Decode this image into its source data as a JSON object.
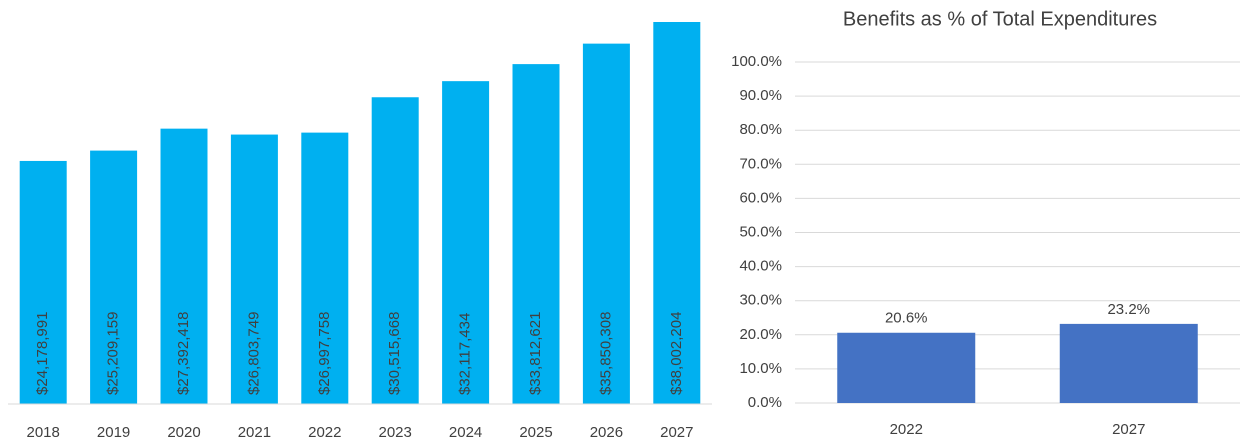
{
  "chart_data": [
    {
      "type": "bar",
      "categories": [
        "2018",
        "2019",
        "2020",
        "2021",
        "2022",
        "2023",
        "2024",
        "2025",
        "2026",
        "2027"
      ],
      "values": [
        24178991,
        25209159,
        27392418,
        26803749,
        26997758,
        30515668,
        32117434,
        33812621,
        35850308,
        38002204
      ],
      "value_labels": [
        "$24,178,991",
        "$25,209,159",
        "$27,392,418",
        "$26,803,749",
        "$26,997,758",
        "$30,515,668",
        "$32,117,434",
        "$33,812,621",
        "$35,850,308",
        "$38,002,204"
      ],
      "color": "#00b0f0"
    },
    {
      "type": "bar",
      "title": "Benefits as % of Total Expenditures",
      "categories": [
        "2022",
        "2027"
      ],
      "values": [
        20.6,
        23.2
      ],
      "value_labels": [
        "20.6%",
        "23.2%"
      ],
      "color": "#4472c4",
      "ylim": [
        0,
        100
      ],
      "yticks": [
        {
          "value": 0,
          "label": "0.0%"
        },
        {
          "value": 10,
          "label": "10.0%"
        },
        {
          "value": 20,
          "label": "20.0%"
        },
        {
          "value": 30,
          "label": "30.0%"
        },
        {
          "value": 40,
          "label": "40.0%"
        },
        {
          "value": 50,
          "label": "50.0%"
        },
        {
          "value": 60,
          "label": "60.0%"
        },
        {
          "value": 70,
          "label": "70.0%"
        },
        {
          "value": 80,
          "label": "80.0%"
        },
        {
          "value": 90,
          "label": "90.0%"
        },
        {
          "value": 100,
          "label": "100.0%"
        }
      ],
      "grid": true
    }
  ]
}
